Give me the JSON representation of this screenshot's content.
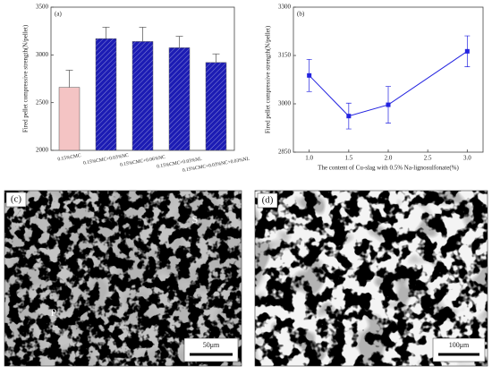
{
  "chart_data": [
    {
      "type": "bar",
      "title": "(a)",
      "y_label": "Fired pellet compressive strength(N/pellet)",
      "categories": [
        "0.15%CMC",
        "0.15%CMC+0.03%NC",
        "0.15%CMC+0.06%NC",
        "0.15%CMC+0.03%NL",
        "0.15%CMC+0.03%NC+0.03%NL"
      ],
      "values": [
        2660,
        3170,
        3140,
        3075,
        2920
      ],
      "errors": [
        180,
        120,
        150,
        120,
        90
      ],
      "colors": [
        "#f4c4c4",
        "#1c1cb4",
        "#1c1cb4",
        "#1c1cb4",
        "#1c1cb4"
      ],
      "hatch": [
        false,
        true,
        true,
        true,
        true
      ],
      "ylim": [
        2000,
        3500
      ],
      "yticks": [
        2000,
        2500,
        3000,
        3500
      ]
    },
    {
      "type": "line",
      "title": "(b)",
      "x_label": "The content of Cu-slag with 0.5% Na-lignosulfonate(%)",
      "y_label": "Fired pellet compressive strength(N/pellet)",
      "x": [
        1.0,
        1.5,
        2.0,
        3.0
      ],
      "values": [
        3088,
        2962,
        2997,
        3163
      ],
      "errors": [
        50,
        40,
        57,
        48
      ],
      "color": "#2323e0",
      "xlim": [
        0.8,
        3.2
      ],
      "xticks": [
        {
          "value": 1,
          "label": "1.0"
        },
        1.5,
        {
          "value": 2,
          "label": "2.0"
        },
        2.5,
        {
          "value": 3,
          "label": "3.0"
        }
      ],
      "ylim": [
        2850,
        3300
      ],
      "yticks": [
        2850,
        3000,
        3150,
        3300
      ]
    }
  ],
  "micrographs": [
    {
      "label": "(c)",
      "scale_bar": "50μm",
      "annotations": [
        "P",
        "S"
      ]
    },
    {
      "label": "(d)",
      "scale_bar": "100μm"
    }
  ]
}
